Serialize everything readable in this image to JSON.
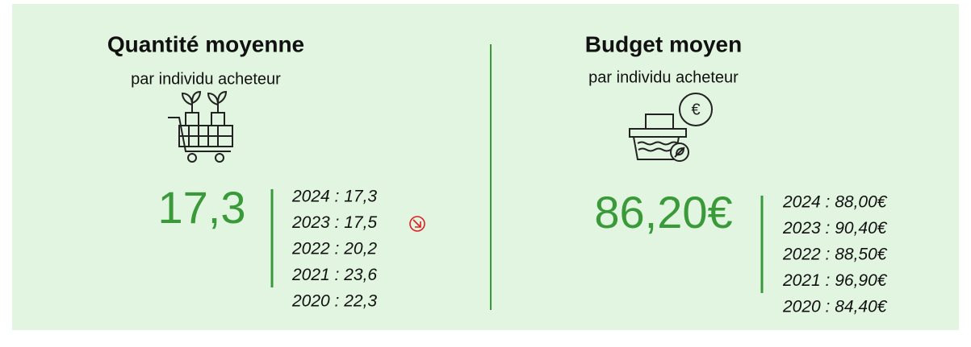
{
  "left": {
    "title": "Quantité moyenne",
    "subtitle": "par individu acheteur",
    "value": "17,3",
    "history": [
      "2024 : 17,3",
      "2023 : 17,5",
      "2022 : 20,2",
      "2021 : 23,6",
      "2020 : 22,3"
    ]
  },
  "right": {
    "title": "Budget moyen",
    "subtitle": "par individu acheteur",
    "value": "86,20€",
    "history": [
      "2024 : 88,00€",
      "2023 : 90,40€",
      "2022 : 88,50€",
      "2021 : 96,90€",
      "2020 : 84,40€"
    ]
  }
}
